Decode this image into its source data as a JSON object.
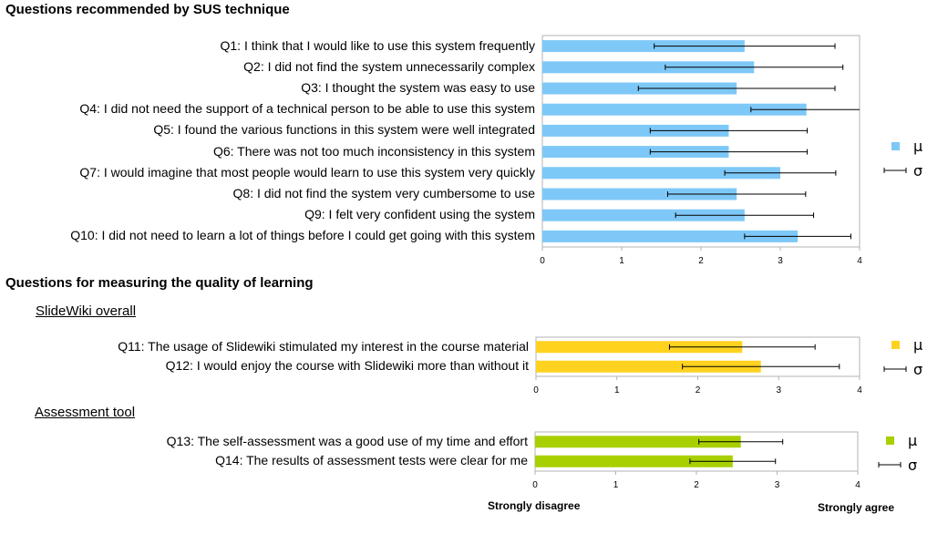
{
  "headings": {
    "sus": "Questions recommended by SUS technique",
    "learning": "Questions for measuring the quality of learning",
    "slidewiki": "SlideWiki overall",
    "assessment": "Assessment tool"
  },
  "scale_labels": {
    "left": "Strongly disagree",
    "right": "Strongly agree"
  },
  "legend": {
    "mean_symbol": "μ",
    "sd_symbol": "σ"
  },
  "colors": {
    "sus": "#7ec8f8",
    "slidewiki": "#ffd21f",
    "assessment": "#a8d000",
    "errorbar": "#000000",
    "frame": "#b3b3b3"
  },
  "chart_data": [
    {
      "type": "bar",
      "orientation": "horizontal",
      "title": "Questions recommended by SUS technique",
      "categories": [
        "Q1: I think that I would like to use this system frequently",
        "Q2: I did not find the system unnecessarily complex",
        "Q3: I thought the system was easy to use",
        "Q4: I did not need the support of a technical person to be able to use this system",
        "Q5: I found the various functions in this system were well integrated",
        "Q6: There was not too much inconsistency in this system",
        "Q7: I would imagine that most people would learn to use this system very quickly",
        "Q8: I did not find the system very cumbersome to use",
        "Q9: I felt very confident using the system",
        "Q10: I did not need to learn a lot of things before I could get going with this system"
      ],
      "values": [
        2.55,
        2.67,
        2.45,
        3.33,
        2.35,
        2.35,
        3.0,
        2.45,
        2.55,
        3.22
      ],
      "errors": [
        1.14,
        1.12,
        1.24,
        0.7,
        0.99,
        0.99,
        0.7,
        0.87,
        0.87,
        0.67
      ],
      "xlim": [
        0,
        4
      ],
      "ticks": [
        0,
        1,
        2,
        3,
        4
      ],
      "legend": "right"
    },
    {
      "type": "bar",
      "orientation": "horizontal",
      "title": "SlideWiki overall",
      "categories": [
        "Q11: The usage of Slidewiki stimulated my interest in the course material",
        "Q12: I would enjoy the course with Slidewiki more than without it"
      ],
      "values": [
        2.55,
        2.78
      ],
      "errors": [
        0.9,
        0.97
      ],
      "xlim": [
        0,
        4
      ],
      "ticks": [
        0,
        1,
        2,
        3,
        4
      ],
      "legend": "right"
    },
    {
      "type": "bar",
      "orientation": "horizontal",
      "title": "Assessment tool",
      "categories": [
        "Q13: The self-assessment was a good use of my time and effort",
        "Q14: The results of assessment tests were clear for me"
      ],
      "values": [
        2.55,
        2.45
      ],
      "errors": [
        0.52,
        0.53
      ],
      "xlim": [
        0,
        4
      ],
      "ticks": [
        0,
        1,
        2,
        3,
        4
      ],
      "legend": "right"
    }
  ]
}
